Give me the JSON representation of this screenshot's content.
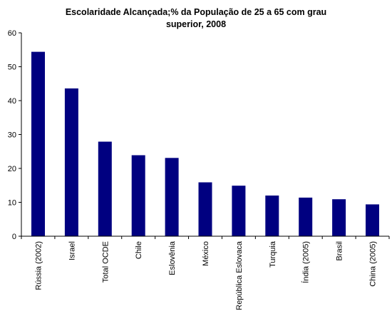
{
  "chart_data": {
    "type": "bar",
    "title": "Escolaridade Alcançada;% da População de 25 a 65 com grau superior, 2008",
    "title_lines": [
      "Escolaridade Alcançada;% da População de 25 a 65 com grau",
      "superior, 2008"
    ],
    "xlabel": "",
    "ylabel": "",
    "ylim": [
      0,
      60
    ],
    "yticks": [
      "0",
      "10",
      "20",
      "30",
      "40",
      "50",
      "60"
    ],
    "grid": false,
    "legend": "none",
    "categories": [
      "Rússia (2002)",
      "Israel",
      "Total OCDE",
      "Chile",
      "Eslovênia",
      "México",
      "República Eslovaca",
      "Turquia",
      "Índia (2005)",
      "Brasil",
      "China (2005)"
    ],
    "values": [
      54.4,
      43.6,
      27.9,
      23.9,
      23.1,
      15.9,
      14.9,
      12.0,
      11.4,
      10.9,
      9.4
    ],
    "bar_color": "#000080"
  }
}
